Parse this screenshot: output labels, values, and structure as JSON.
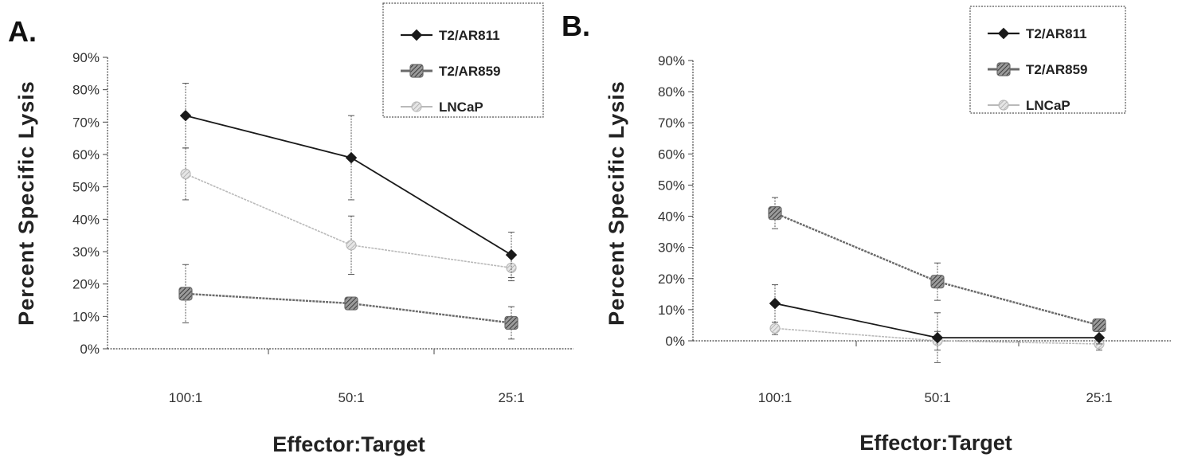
{
  "colors": {
    "T2/AR811": "#1a1a1a",
    "T2/AR859": "#6a6a6a",
    "LNCaP": "#b9b9b9"
  },
  "chart_data": [
    {
      "panel": "A.",
      "type": "line",
      "xlabel": "Effector:Target",
      "ylabel": "Percent Specific Lysis",
      "categories": [
        "100:1",
        "50:1",
        "25:1"
      ],
      "yticks": [
        "0%",
        "10%",
        "20%",
        "30%",
        "40%",
        "50%",
        "60%",
        "70%",
        "80%",
        "90%"
      ],
      "ylim": [
        0,
        90
      ],
      "legend_position": "top-right",
      "series": [
        {
          "name": "T2/AR811",
          "values": [
            72,
            59,
            29
          ],
          "error": [
            10,
            13,
            7
          ]
        },
        {
          "name": "T2/AR859",
          "values": [
            17,
            14,
            8
          ],
          "error": [
            9,
            1,
            5
          ]
        },
        {
          "name": "LNCaP",
          "values": [
            54,
            32,
            25
          ],
          "error": [
            8,
            9,
            4
          ]
        }
      ]
    },
    {
      "panel": "B.",
      "type": "line",
      "xlabel": "Effector:Target",
      "ylabel": "Percent Specific Lysis",
      "categories": [
        "100:1",
        "50:1",
        "25:1"
      ],
      "yticks": [
        "0%",
        "10%",
        "20%",
        "30%",
        "40%",
        "50%",
        "60%",
        "70%",
        "80%",
        "90%"
      ],
      "ylim": [
        0,
        90
      ],
      "legend_position": "top-right",
      "series": [
        {
          "name": "T2/AR811",
          "values": [
            12,
            1,
            1
          ],
          "error": [
            6,
            8,
            2
          ]
        },
        {
          "name": "T2/AR859",
          "values": [
            41,
            19,
            5
          ],
          "error": [
            5,
            6,
            2
          ]
        },
        {
          "name": "LNCaP",
          "values": [
            4,
            0,
            -1
          ],
          "error": [
            2,
            3,
            2
          ]
        }
      ]
    }
  ]
}
